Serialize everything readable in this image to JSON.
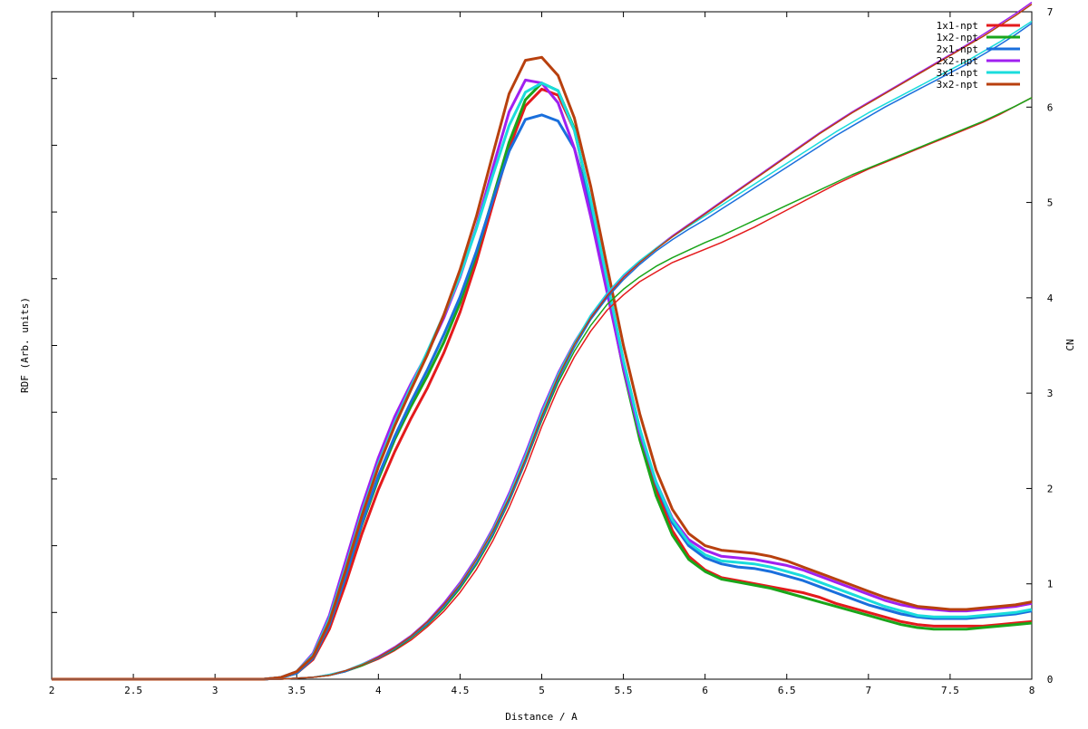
{
  "chart_data": {
    "type": "line",
    "xlabel": "Distance / A",
    "ylabel_left": "RDF (Arb. units)",
    "ylabel_right": "CN",
    "xlim": [
      2,
      8
    ],
    "ylim_right": [
      0,
      7
    ],
    "grid": false,
    "legend_position": "top-right",
    "x_ticks": [
      "2",
      "2.5",
      "3",
      "3.5",
      "4",
      "4.5",
      "5",
      "5.5",
      "6",
      "6.5",
      "7",
      "7.5",
      "8"
    ],
    "right_ticks": [
      "0",
      "1",
      "2",
      "3",
      "4",
      "5",
      "6",
      "7"
    ],
    "x": [
      2.0,
      3.3,
      3.4,
      3.5,
      3.6,
      3.7,
      3.8,
      3.9,
      4.0,
      4.1,
      4.2,
      4.3,
      4.4,
      4.5,
      4.6,
      4.7,
      4.8,
      4.9,
      5.0,
      5.1,
      5.2,
      5.3,
      5.4,
      5.5,
      5.6,
      5.7,
      5.8,
      5.9,
      6.0,
      6.1,
      6.2,
      6.3,
      6.4,
      6.5,
      6.6,
      6.7,
      6.8,
      6.9,
      7.0,
      7.1,
      7.2,
      7.3,
      7.4,
      7.5,
      7.6,
      7.7,
      7.8,
      7.9,
      8.0
    ],
    "series": [
      {
        "name": "1x1-npt",
        "color": "#e41a1c",
        "rdf": [
          0,
          0,
          0.01,
          0.04,
          0.13,
          0.33,
          0.63,
          0.96,
          1.25,
          1.5,
          1.72,
          1.92,
          2.15,
          2.42,
          2.75,
          3.13,
          3.5,
          3.78,
          3.89,
          3.85,
          3.62,
          3.15,
          2.6,
          2.07,
          1.62,
          1.25,
          0.98,
          0.81,
          0.72,
          0.67,
          0.65,
          0.63,
          0.61,
          0.59,
          0.57,
          0.54,
          0.5,
          0.47,
          0.44,
          0.41,
          0.38,
          0.36,
          0.35,
          0.35,
          0.35,
          0.35,
          0.36,
          0.37,
          0.38
        ],
        "cn": [
          0,
          0,
          0,
          0.01,
          0.02,
          0.04,
          0.08,
          0.14,
          0.21,
          0.3,
          0.41,
          0.55,
          0.71,
          0.91,
          1.15,
          1.45,
          1.8,
          2.2,
          2.65,
          3.05,
          3.38,
          3.65,
          3.87,
          4.03,
          4.17,
          4.27,
          4.37,
          4.44,
          4.51,
          4.58,
          4.66,
          4.74,
          4.83,
          4.92,
          5.01,
          5.1,
          5.19,
          5.27,
          5.35,
          5.42,
          5.49,
          5.56,
          5.63,
          5.7,
          5.77,
          5.84,
          5.92,
          6.01,
          6.1
        ]
      },
      {
        "name": "1x2-npt",
        "color": "#1aa51a",
        "rdf": [
          0,
          0,
          0.01,
          0.04,
          0.14,
          0.36,
          0.68,
          1.02,
          1.32,
          1.58,
          1.8,
          2.0,
          2.22,
          2.48,
          2.8,
          3.17,
          3.54,
          3.82,
          3.93,
          3.88,
          3.63,
          3.14,
          2.58,
          2.04,
          1.58,
          1.21,
          0.95,
          0.79,
          0.71,
          0.66,
          0.64,
          0.62,
          0.6,
          0.57,
          0.54,
          0.51,
          0.48,
          0.45,
          0.42,
          0.39,
          0.36,
          0.34,
          0.33,
          0.33,
          0.33,
          0.34,
          0.35,
          0.36,
          0.37
        ],
        "cn": [
          0,
          0,
          0,
          0.01,
          0.02,
          0.04,
          0.08,
          0.14,
          0.22,
          0.31,
          0.43,
          0.57,
          0.74,
          0.95,
          1.2,
          1.5,
          1.86,
          2.27,
          2.71,
          3.11,
          3.44,
          3.71,
          3.93,
          4.09,
          4.22,
          4.33,
          4.42,
          4.5,
          4.58,
          4.65,
          4.73,
          4.81,
          4.89,
          4.97,
          5.05,
          5.13,
          5.21,
          5.29,
          5.36,
          5.43,
          5.5,
          5.57,
          5.64,
          5.71,
          5.78,
          5.85,
          5.93,
          6.01,
          6.1
        ]
      },
      {
        "name": "2x1-npt",
        "color": "#1a6fdc",
        "rdf": [
          0,
          0,
          0.01,
          0.04,
          0.14,
          0.36,
          0.68,
          1.03,
          1.34,
          1.6,
          1.83,
          2.04,
          2.27,
          2.52,
          2.82,
          3.16,
          3.48,
          3.69,
          3.72,
          3.68,
          3.5,
          3.12,
          2.62,
          2.1,
          1.65,
          1.29,
          1.03,
          0.88,
          0.8,
          0.76,
          0.74,
          0.73,
          0.71,
          0.68,
          0.65,
          0.61,
          0.57,
          0.53,
          0.49,
          0.46,
          0.43,
          0.41,
          0.4,
          0.4,
          0.4,
          0.41,
          0.42,
          0.43,
          0.45
        ],
        "cn": [
          0,
          0,
          0,
          0.01,
          0.02,
          0.04,
          0.08,
          0.15,
          0.22,
          0.32,
          0.44,
          0.58,
          0.76,
          0.97,
          1.22,
          1.52,
          1.87,
          2.28,
          2.73,
          3.14,
          3.48,
          3.77,
          4.0,
          4.19,
          4.35,
          4.49,
          4.61,
          4.72,
          4.82,
          4.93,
          5.04,
          5.15,
          5.26,
          5.37,
          5.48,
          5.59,
          5.7,
          5.8,
          5.9,
          6.0,
          6.09,
          6.18,
          6.27,
          6.36,
          6.45,
          6.55,
          6.65,
          6.76,
          6.88
        ]
      },
      {
        "name": "2x2-npt",
        "color": "#a020f0",
        "rdf": [
          0,
          0,
          0.01,
          0.05,
          0.17,
          0.42,
          0.78,
          1.14,
          1.46,
          1.73,
          1.95,
          2.15,
          2.38,
          2.65,
          2.98,
          3.37,
          3.74,
          3.95,
          3.93,
          3.8,
          3.5,
          3.05,
          2.55,
          2.05,
          1.62,
          1.3,
          1.06,
          0.92,
          0.85,
          0.81,
          0.8,
          0.79,
          0.77,
          0.75,
          0.72,
          0.68,
          0.64,
          0.6,
          0.56,
          0.52,
          0.49,
          0.47,
          0.46,
          0.45,
          0.45,
          0.46,
          0.47,
          0.48,
          0.5
        ],
        "cn": [
          0,
          0,
          0,
          0.01,
          0.02,
          0.05,
          0.09,
          0.16,
          0.24,
          0.34,
          0.46,
          0.61,
          0.8,
          1.02,
          1.28,
          1.59,
          1.96,
          2.38,
          2.83,
          3.22,
          3.54,
          3.81,
          4.03,
          4.22,
          4.38,
          4.52,
          4.65,
          4.77,
          4.89,
          5.01,
          5.13,
          5.25,
          5.37,
          5.49,
          5.61,
          5.73,
          5.84,
          5.95,
          6.05,
          6.15,
          6.25,
          6.35,
          6.45,
          6.55,
          6.65,
          6.76,
          6.87,
          6.98,
          7.1
        ]
      },
      {
        "name": "3x1-npt",
        "color": "#1adcdc",
        "rdf": [
          0,
          0,
          0.01,
          0.05,
          0.16,
          0.4,
          0.74,
          1.1,
          1.42,
          1.69,
          1.93,
          2.16,
          2.4,
          2.66,
          2.97,
          3.32,
          3.65,
          3.87,
          3.93,
          3.88,
          3.62,
          3.16,
          2.63,
          2.1,
          1.65,
          1.3,
          1.05,
          0.9,
          0.82,
          0.78,
          0.77,
          0.76,
          0.74,
          0.71,
          0.68,
          0.64,
          0.6,
          0.56,
          0.52,
          0.48,
          0.45,
          0.42,
          0.41,
          0.41,
          0.41,
          0.42,
          0.43,
          0.44,
          0.46
        ],
        "cn": [
          0,
          0,
          0,
          0.01,
          0.02,
          0.05,
          0.09,
          0.16,
          0.23,
          0.33,
          0.45,
          0.6,
          0.78,
          1.0,
          1.26,
          1.57,
          1.93,
          2.35,
          2.8,
          3.2,
          3.53,
          3.82,
          4.05,
          4.24,
          4.39,
          4.52,
          4.64,
          4.75,
          4.86,
          4.97,
          5.08,
          5.19,
          5.3,
          5.41,
          5.52,
          5.63,
          5.74,
          5.84,
          5.94,
          6.03,
          6.12,
          6.21,
          6.3,
          6.39,
          6.48,
          6.58,
          6.68,
          6.79,
          6.9
        ]
      },
      {
        "name": "3x2-npt",
        "color": "#b8400e",
        "rdf": [
          0,
          0,
          0.01,
          0.05,
          0.15,
          0.38,
          0.72,
          1.08,
          1.4,
          1.67,
          1.91,
          2.14,
          2.4,
          2.7,
          3.05,
          3.46,
          3.86,
          4.08,
          4.1,
          3.98,
          3.7,
          3.25,
          2.72,
          2.2,
          1.75,
          1.38,
          1.12,
          0.96,
          0.88,
          0.85,
          0.84,
          0.83,
          0.81,
          0.78,
          0.74,
          0.7,
          0.66,
          0.62,
          0.58,
          0.54,
          0.51,
          0.48,
          0.47,
          0.46,
          0.46,
          0.47,
          0.48,
          0.49,
          0.51
        ],
        "cn": [
          0,
          0,
          0,
          0.01,
          0.02,
          0.04,
          0.09,
          0.15,
          0.23,
          0.33,
          0.45,
          0.6,
          0.78,
          0.99,
          1.25,
          1.55,
          1.9,
          2.31,
          2.76,
          3.17,
          3.51,
          3.79,
          4.02,
          4.21,
          4.37,
          4.51,
          4.64,
          4.76,
          4.88,
          5.0,
          5.12,
          5.24,
          5.36,
          5.48,
          5.6,
          5.72,
          5.83,
          5.94,
          6.04,
          6.14,
          6.24,
          6.34,
          6.44,
          6.54,
          6.64,
          6.74,
          6.85,
          6.96,
          7.08
        ]
      }
    ]
  }
}
